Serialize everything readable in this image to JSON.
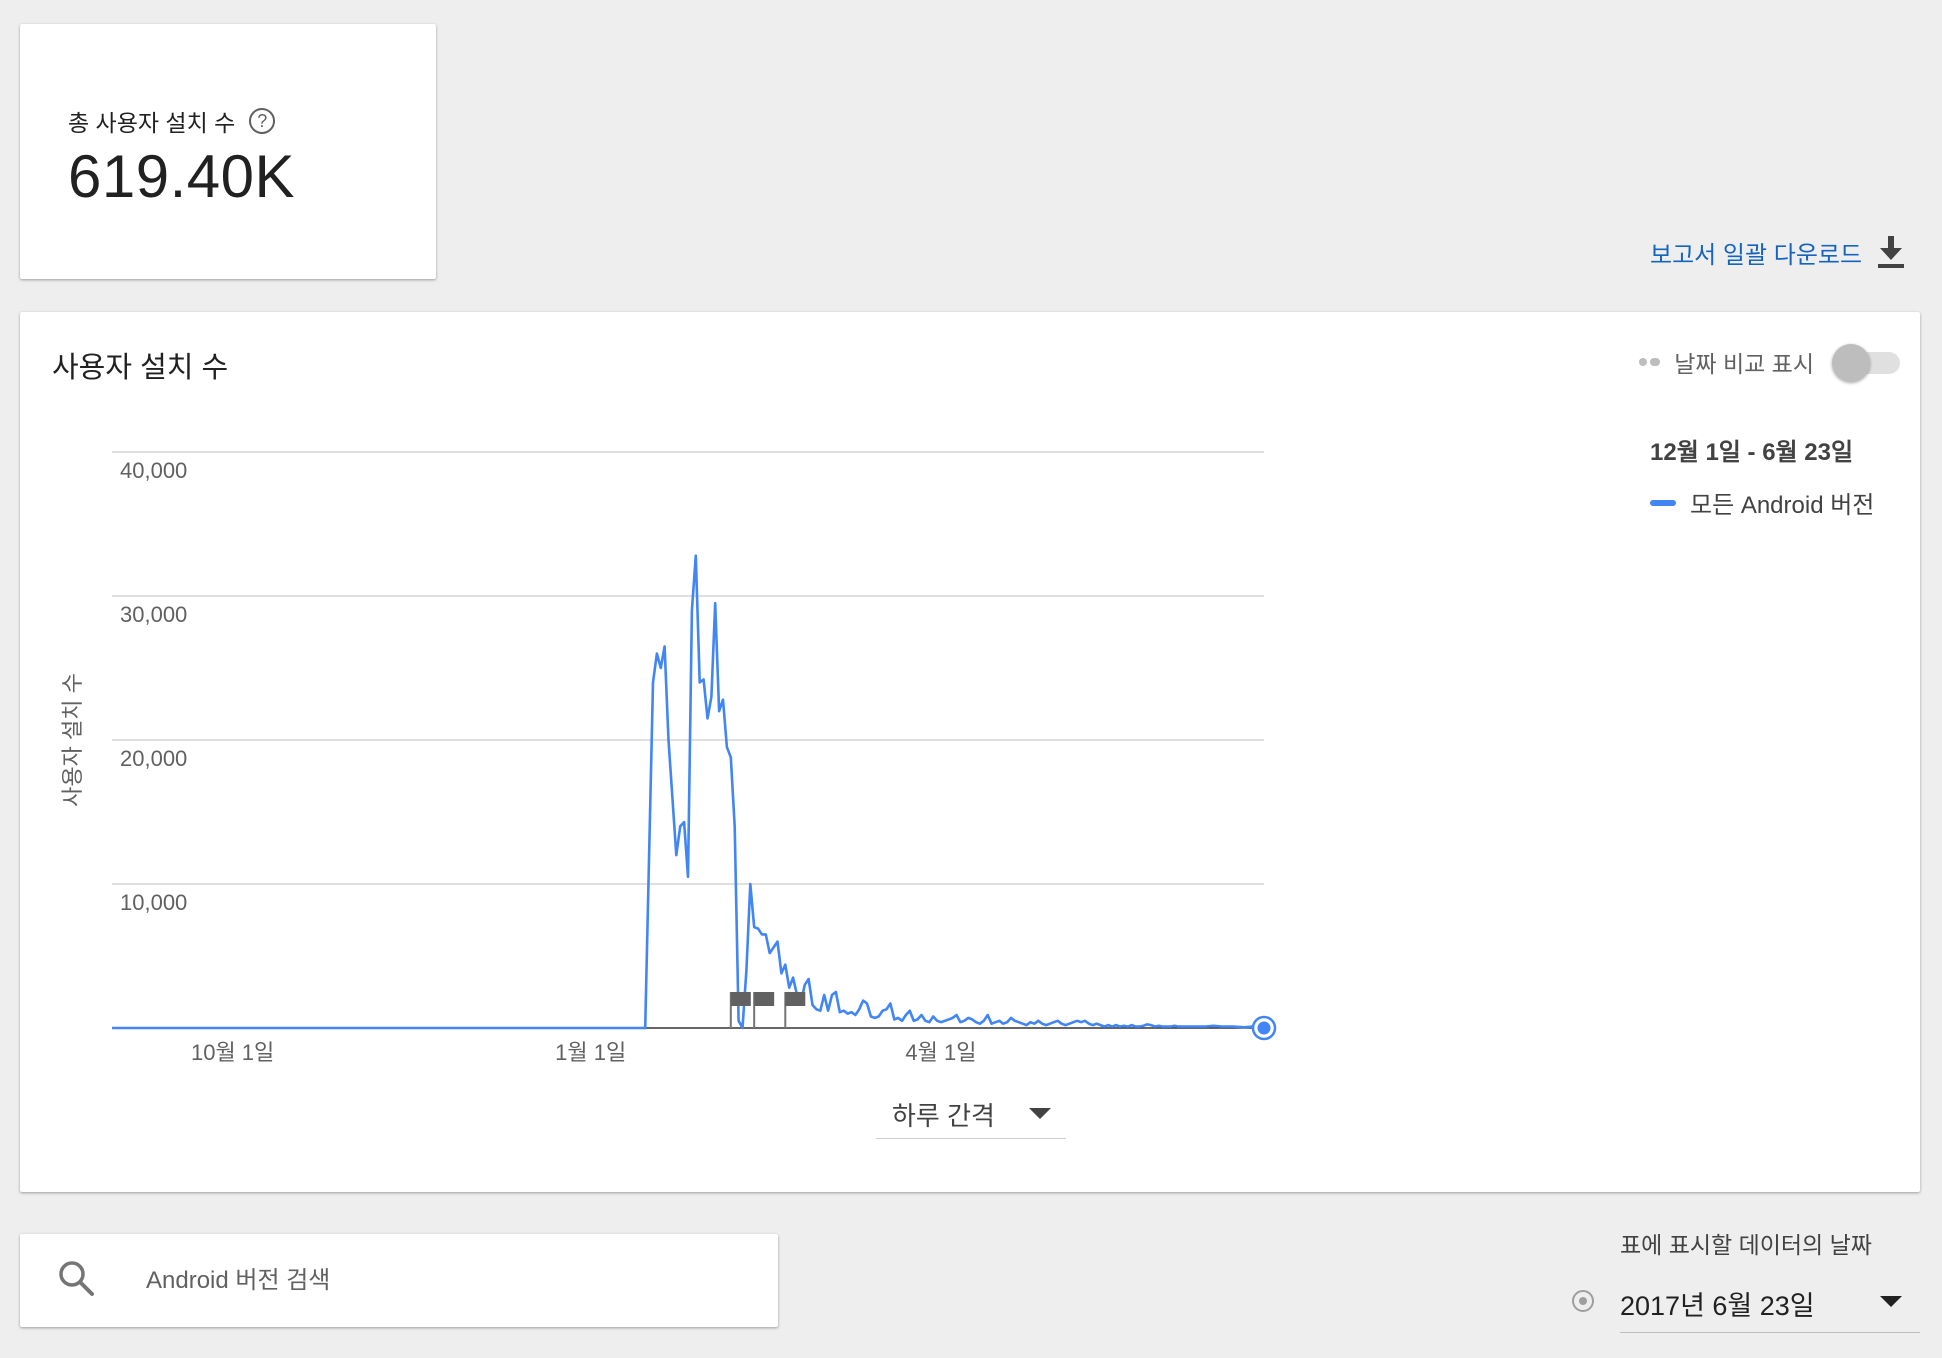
{
  "summary": {
    "label": "총 사용자 설치 수",
    "help_icon": "help-circle-icon",
    "help_glyph": "?",
    "value": "619.40K"
  },
  "download": {
    "label": "보고서 일괄 다운로드",
    "icon": "download-icon"
  },
  "chart_card": {
    "title": "사용자 설치 수",
    "compare_label": "날짜 비교 표시",
    "compare_enabled": false,
    "legend_range": "12월 1일 - 6월 23일",
    "legend_series": "모든 Android 버전",
    "accent_color": "#4285f4"
  },
  "interval": {
    "label": "하루 간격"
  },
  "search": {
    "placeholder": "Android 버전 검색",
    "value": ""
  },
  "date_selector": {
    "label": "표에 표시할 데이터의 날짜",
    "value": "2017년 6월 23일"
  },
  "chart_data": {
    "type": "line",
    "ylabel": "사용자 설치 수",
    "xlabel": "",
    "ylim": [
      0,
      40000
    ],
    "yticks": [
      {
        "value": 40000,
        "label": "40,000"
      },
      {
        "value": 30000,
        "label": "30,000"
      },
      {
        "value": 20000,
        "label": "20,000"
      },
      {
        "value": 10000,
        "label": "10,000"
      }
    ],
    "xticks": [
      {
        "date": "2016-10-01",
        "label": "10월 1일"
      },
      {
        "date": "2017-01-01",
        "label": "1월 1일"
      },
      {
        "date": "2017-04-01",
        "label": "4월 1일"
      }
    ],
    "xlim": [
      "2016-08-31",
      "2017-06-23"
    ],
    "series": [
      {
        "name": "모든 Android 버전",
        "color": "#4285f4",
        "points": [
          [
            "2016-08-31",
            0
          ],
          [
            "2016-12-31",
            0
          ],
          [
            "2017-01-15",
            0
          ],
          [
            "2017-01-17",
            24000
          ],
          [
            "2017-01-18",
            26000
          ],
          [
            "2017-01-19",
            25000
          ],
          [
            "2017-01-20",
            26500
          ],
          [
            "2017-01-21",
            20000
          ],
          [
            "2017-01-22",
            16000
          ],
          [
            "2017-01-23",
            12000
          ],
          [
            "2017-01-24",
            14000
          ],
          [
            "2017-01-25",
            14300
          ],
          [
            "2017-01-26",
            10500
          ],
          [
            "2017-01-27",
            29000
          ],
          [
            "2017-01-28",
            32800
          ],
          [
            "2017-01-29",
            24000
          ],
          [
            "2017-01-30",
            24200
          ],
          [
            "2017-01-31",
            21500
          ],
          [
            "2017-02-01",
            23000
          ],
          [
            "2017-02-02",
            29500
          ],
          [
            "2017-02-03",
            22000
          ],
          [
            "2017-02-04",
            22800
          ],
          [
            "2017-02-05",
            19500
          ],
          [
            "2017-02-06",
            18800
          ],
          [
            "2017-02-07",
            14000
          ],
          [
            "2017-02-08",
            500
          ],
          [
            "2017-02-09",
            0
          ],
          [
            "2017-02-10",
            4000
          ],
          [
            "2017-02-11",
            10000
          ],
          [
            "2017-02-12",
            7000
          ],
          [
            "2017-02-13",
            6900
          ],
          [
            "2017-02-14",
            6500
          ],
          [
            "2017-02-15",
            6500
          ],
          [
            "2017-02-16",
            5200
          ],
          [
            "2017-02-17",
            5600
          ],
          [
            "2017-02-18",
            6000
          ],
          [
            "2017-02-19",
            3800
          ],
          [
            "2017-02-20",
            4400
          ],
          [
            "2017-02-21",
            2800
          ],
          [
            "2017-02-22",
            3500
          ],
          [
            "2017-02-23",
            2300
          ],
          [
            "2017-02-24",
            1800
          ],
          [
            "2017-02-25",
            3000
          ],
          [
            "2017-02-26",
            3400
          ],
          [
            "2017-02-27",
            1600
          ],
          [
            "2017-02-28",
            1300
          ],
          [
            "2017-03-01",
            1200
          ],
          [
            "2017-03-02",
            2300
          ],
          [
            "2017-03-03",
            1200
          ],
          [
            "2017-03-04",
            2300
          ],
          [
            "2017-03-05",
            2500
          ],
          [
            "2017-03-06",
            1100
          ],
          [
            "2017-03-07",
            1200
          ],
          [
            "2017-03-08",
            1000
          ],
          [
            "2017-03-09",
            1100
          ],
          [
            "2017-03-10",
            900
          ],
          [
            "2017-03-11",
            1300
          ],
          [
            "2017-03-12",
            1900
          ],
          [
            "2017-03-13",
            1700
          ],
          [
            "2017-03-14",
            800
          ],
          [
            "2017-03-15",
            700
          ],
          [
            "2017-03-16",
            800
          ],
          [
            "2017-03-17",
            1200
          ],
          [
            "2017-03-18",
            1300
          ],
          [
            "2017-03-19",
            1700
          ],
          [
            "2017-03-20",
            600
          ],
          [
            "2017-03-21",
            700
          ],
          [
            "2017-03-22",
            500
          ],
          [
            "2017-03-23",
            900
          ],
          [
            "2017-03-24",
            1200
          ],
          [
            "2017-03-25",
            500
          ],
          [
            "2017-03-26",
            600
          ],
          [
            "2017-03-27",
            900
          ],
          [
            "2017-03-28",
            500
          ],
          [
            "2017-03-29",
            400
          ],
          [
            "2017-03-30",
            800
          ],
          [
            "2017-03-31",
            500
          ],
          [
            "2017-04-01",
            400
          ],
          [
            "2017-04-02",
            500
          ],
          [
            "2017-04-03",
            600
          ],
          [
            "2017-04-04",
            700
          ],
          [
            "2017-04-05",
            900
          ],
          [
            "2017-04-06",
            400
          ],
          [
            "2017-04-07",
            500
          ],
          [
            "2017-04-08",
            700
          ],
          [
            "2017-04-09",
            600
          ],
          [
            "2017-04-10",
            400
          ],
          [
            "2017-04-11",
            300
          ],
          [
            "2017-04-12",
            500
          ],
          [
            "2017-04-13",
            900
          ],
          [
            "2017-04-14",
            300
          ],
          [
            "2017-04-15",
            400
          ],
          [
            "2017-04-16",
            500
          ],
          [
            "2017-04-17",
            300
          ],
          [
            "2017-04-18",
            400
          ],
          [
            "2017-04-19",
            700
          ],
          [
            "2017-04-20",
            500
          ],
          [
            "2017-04-21",
            400
          ],
          [
            "2017-04-22",
            300
          ],
          [
            "2017-04-23",
            200
          ],
          [
            "2017-04-24",
            400
          ],
          [
            "2017-04-25",
            300
          ],
          [
            "2017-04-26",
            500
          ],
          [
            "2017-04-27",
            300
          ],
          [
            "2017-04-28",
            200
          ],
          [
            "2017-04-29",
            300
          ],
          [
            "2017-04-30",
            400
          ],
          [
            "2017-05-01",
            500
          ],
          [
            "2017-05-02",
            300
          ],
          [
            "2017-05-03",
            200
          ],
          [
            "2017-05-04",
            300
          ],
          [
            "2017-05-05",
            400
          ],
          [
            "2017-05-06",
            500
          ],
          [
            "2017-05-07",
            400
          ],
          [
            "2017-05-08",
            500
          ],
          [
            "2017-05-09",
            300
          ],
          [
            "2017-05-10",
            200
          ],
          [
            "2017-05-11",
            300
          ],
          [
            "2017-05-12",
            200
          ],
          [
            "2017-05-13",
            100
          ],
          [
            "2017-05-14",
            200
          ],
          [
            "2017-05-15",
            100
          ],
          [
            "2017-05-16",
            200
          ],
          [
            "2017-05-17",
            100
          ],
          [
            "2017-05-18",
            150
          ],
          [
            "2017-05-19",
            100
          ],
          [
            "2017-05-20",
            200
          ],
          [
            "2017-05-21",
            100
          ],
          [
            "2017-05-22",
            100
          ],
          [
            "2017-05-23",
            150
          ],
          [
            "2017-05-24",
            250
          ],
          [
            "2017-05-25",
            200
          ],
          [
            "2017-05-26",
            100
          ],
          [
            "2017-05-27",
            150
          ],
          [
            "2017-05-28",
            100
          ],
          [
            "2017-05-29",
            100
          ],
          [
            "2017-05-30",
            100
          ],
          [
            "2017-05-31",
            150
          ],
          [
            "2017-06-01",
            100
          ],
          [
            "2017-06-02",
            100
          ],
          [
            "2017-06-05",
            100
          ],
          [
            "2017-06-08",
            100
          ],
          [
            "2017-06-10",
            150
          ],
          [
            "2017-06-12",
            100
          ],
          [
            "2017-06-15",
            100
          ],
          [
            "2017-06-18",
            50
          ],
          [
            "2017-06-20",
            100
          ],
          [
            "2017-06-23",
            0
          ]
        ]
      }
    ],
    "annotations": {
      "icon": "flag-icon",
      "dates": [
        "2017-02-06",
        "2017-02-12",
        "2017-02-20"
      ]
    },
    "grid": true,
    "legend": "right"
  }
}
